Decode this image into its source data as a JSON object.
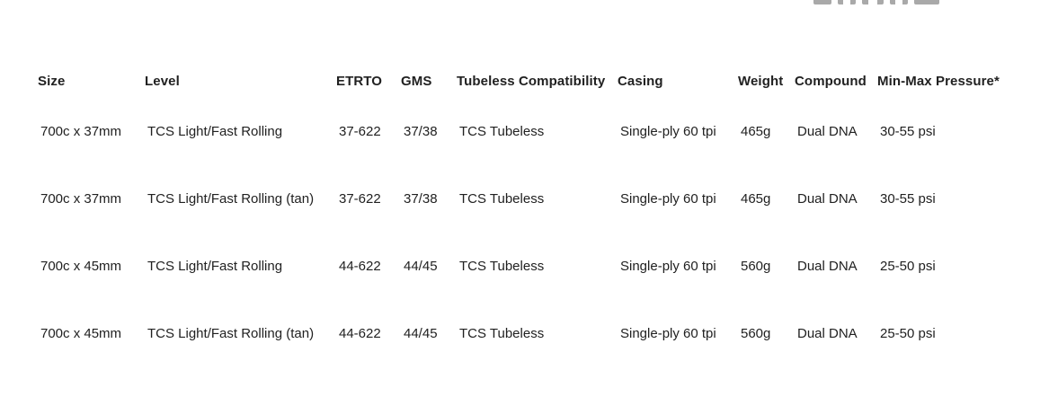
{
  "logo_fragment": {
    "description": "partially cut-off gray logo letters at top edge",
    "color": "#a9a9a9"
  },
  "table": {
    "columns": [
      {
        "key": "size",
        "label": "Size"
      },
      {
        "key": "level",
        "label": "Level"
      },
      {
        "key": "etrto",
        "label": "ETRTO"
      },
      {
        "key": "gms",
        "label": "GMS"
      },
      {
        "key": "tubeless",
        "label": "Tubeless Compatibility"
      },
      {
        "key": "casing",
        "label": "Casing"
      },
      {
        "key": "weight",
        "label": "Weight"
      },
      {
        "key": "compound",
        "label": "Compound"
      },
      {
        "key": "pressure",
        "label": "Min-Max Pressure*"
      }
    ],
    "rows": [
      {
        "size": "700c x 37mm",
        "level": "TCS Light/Fast Rolling",
        "etrto": "37-622",
        "gms": "37/38",
        "tubeless": "TCS Tubeless",
        "casing": "Single-ply 60 tpi",
        "weight": "465g",
        "compound": "Dual DNA",
        "pressure": "30-55 psi"
      },
      {
        "size": "700c x 37mm",
        "level": "TCS Light/Fast Rolling (tan)",
        "etrto": "37-622",
        "gms": "37/38",
        "tubeless": "TCS Tubeless",
        "casing": "Single-ply 60 tpi",
        "weight": "465g",
        "compound": "Dual DNA",
        "pressure": "30-55 psi"
      },
      {
        "size": "700c x 45mm",
        "level": "TCS Light/Fast Rolling",
        "etrto": "44-622",
        "gms": "44/45",
        "tubeless": "TCS Tubeless",
        "casing": "Single-ply 60 tpi",
        "weight": "560g",
        "compound": "Dual DNA",
        "pressure": "25-50 psi"
      },
      {
        "size": "700c x 45mm",
        "level": "TCS Light/Fast Rolling (tan)",
        "etrto": "44-622",
        "gms": "44/45",
        "tubeless": "TCS Tubeless",
        "casing": "Single-ply 60 tpi",
        "weight": "560g",
        "compound": "Dual DNA",
        "pressure": "25-50 psi"
      }
    ]
  },
  "colors": {
    "text": "#212121",
    "background": "#ffffff",
    "logo_gray": "#a9a9a9"
  }
}
